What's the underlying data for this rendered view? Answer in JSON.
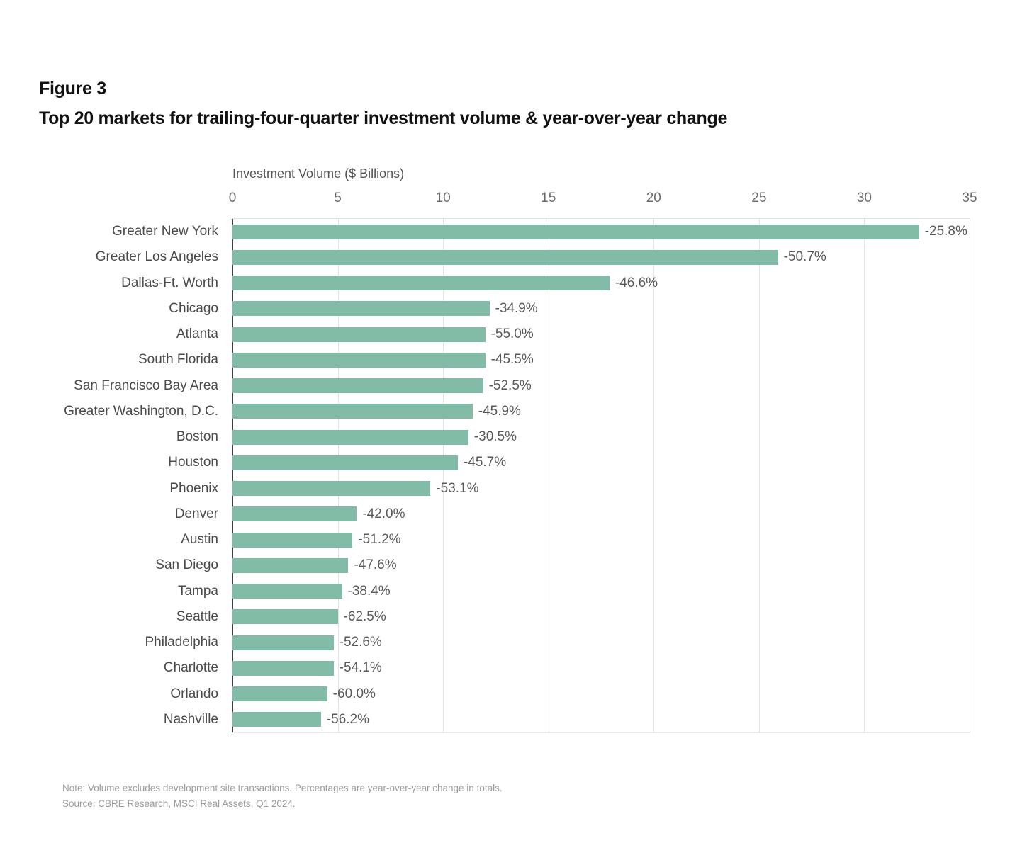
{
  "figure": {
    "label": "Figure 3",
    "title": "Top 20 markets for trailing-four-quarter investment volume & year-over-year change"
  },
  "chart_data": {
    "type": "bar",
    "orientation": "horizontal",
    "title": "Top 20 markets for trailing-four-quarter investment volume & year-over-year change",
    "xlabel": "Investment Volume ($ Billions)",
    "ylabel": "",
    "xlim": [
      0,
      35
    ],
    "x_ticks": [
      0,
      5,
      10,
      15,
      20,
      25,
      30,
      35
    ],
    "grid": "vertical",
    "categories": [
      "Greater New York",
      "Greater Los Angeles",
      "Dallas-Ft. Worth",
      "Chicago",
      "Atlanta",
      "South Florida",
      "San Francisco Bay Area",
      "Greater Washington, D.C.",
      "Boston",
      "Houston",
      "Phoenix",
      "Denver",
      "Austin",
      "San Diego",
      "Tampa",
      "Seattle",
      "Philadelphia",
      "Charlotte",
      "Orlando",
      "Nashville"
    ],
    "values": [
      32.6,
      25.9,
      17.9,
      12.2,
      12.0,
      12.0,
      11.9,
      11.4,
      11.2,
      10.7,
      9.4,
      5.9,
      5.7,
      5.5,
      5.2,
      5.0,
      4.8,
      4.8,
      4.5,
      4.2
    ],
    "change_labels": [
      "-25.8%",
      "-50.7%",
      "-46.6%",
      "-34.9%",
      "-55.0%",
      "-45.5%",
      "-52.5%",
      "-45.9%",
      "-30.5%",
      "-45.7%",
      "-53.1%",
      "-42.0%",
      "-51.2%",
      "-47.6%",
      "-38.4%",
      "-62.5%",
      "-52.6%",
      "-54.1%",
      "-60.0%",
      "-56.2%"
    ],
    "colors": {
      "bar": "#82bca7",
      "title_text": "#111111",
      "category_text": "#4a4a4a",
      "change_text": "#595959",
      "tick_text": "#6b6b6b",
      "axis_title_text": "#555555",
      "gridline": "#e3e3e3",
      "axis_line": "#3f3f3f",
      "footnote_text": "#9b9b9b"
    }
  },
  "footnote": {
    "note": "Note: Volume excludes development site transactions. Percentages are year-over-year change in totals.",
    "source": "Source: CBRE Research, MSCI Real Assets, Q1 2024."
  }
}
